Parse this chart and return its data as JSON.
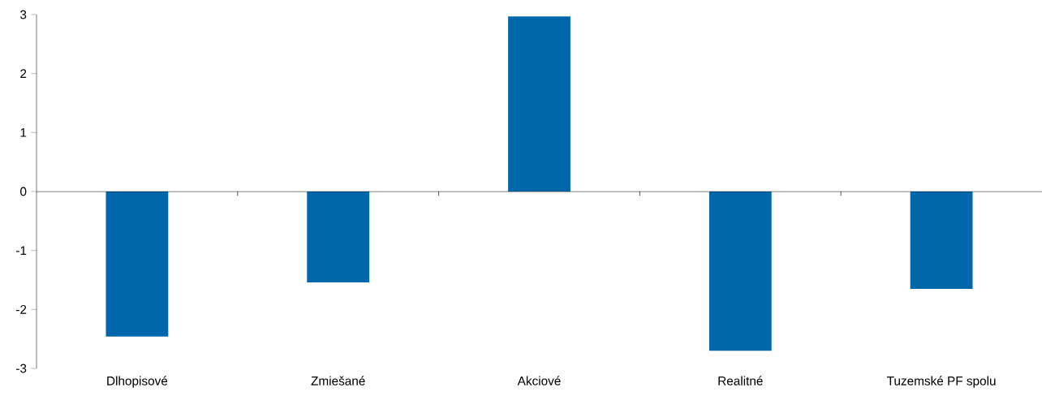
{
  "chart_data": {
    "type": "bar",
    "categories": [
      "Dlhopisové",
      "Zmiešané",
      "Akciové",
      "Realitné",
      "Tuzemské PF spolu"
    ],
    "values": [
      -2.46,
      -1.54,
      2.97,
      -2.7,
      -1.65
    ],
    "color": "#0067ab",
    "ylim": [
      -3,
      3
    ],
    "yticks": [
      -3,
      -2,
      -1,
      0,
      1,
      2,
      3
    ],
    "ref_lines": [
      {
        "axis": "y",
        "value": 0,
        "color": "#000000"
      }
    ]
  }
}
